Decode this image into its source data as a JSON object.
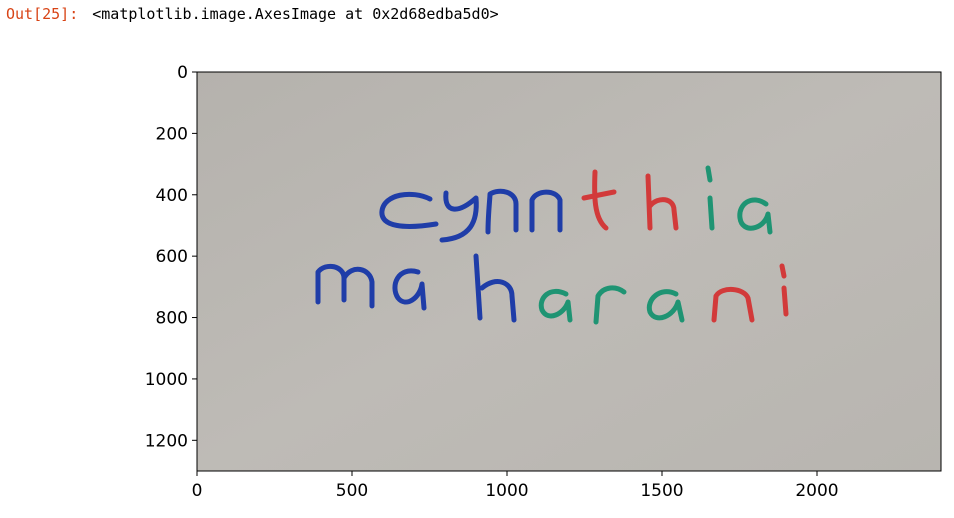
{
  "output": {
    "prompt": "Out[25]:",
    "repr": "<matplotlib.image.AxesImage at 0x2d68edba5d0>"
  },
  "chart_data": {
    "type": "image",
    "image_width": 2400,
    "image_height": 1300,
    "xticks": [
      0,
      500,
      1000,
      1500,
      2000
    ],
    "yticks": [
      0,
      200,
      400,
      600,
      800,
      1000,
      1200
    ],
    "x_axis": "left-to-right",
    "y_axis": "top-to-bottom",
    "background_color": "#b9b6b1",
    "handwriting": {
      "line1": [
        {
          "text": "cyn",
          "color": "#1f3da8"
        },
        {
          "text": "th",
          "color": "#d23a3a"
        },
        {
          "text": "ia",
          "color": "#1f9473"
        }
      ],
      "line2": [
        {
          "text": "mah",
          "color": "#1f3da8"
        },
        {
          "text": "ara",
          "color": "#1f9473"
        },
        {
          "text": "ni",
          "color": "#d23a3a"
        }
      ]
    }
  }
}
